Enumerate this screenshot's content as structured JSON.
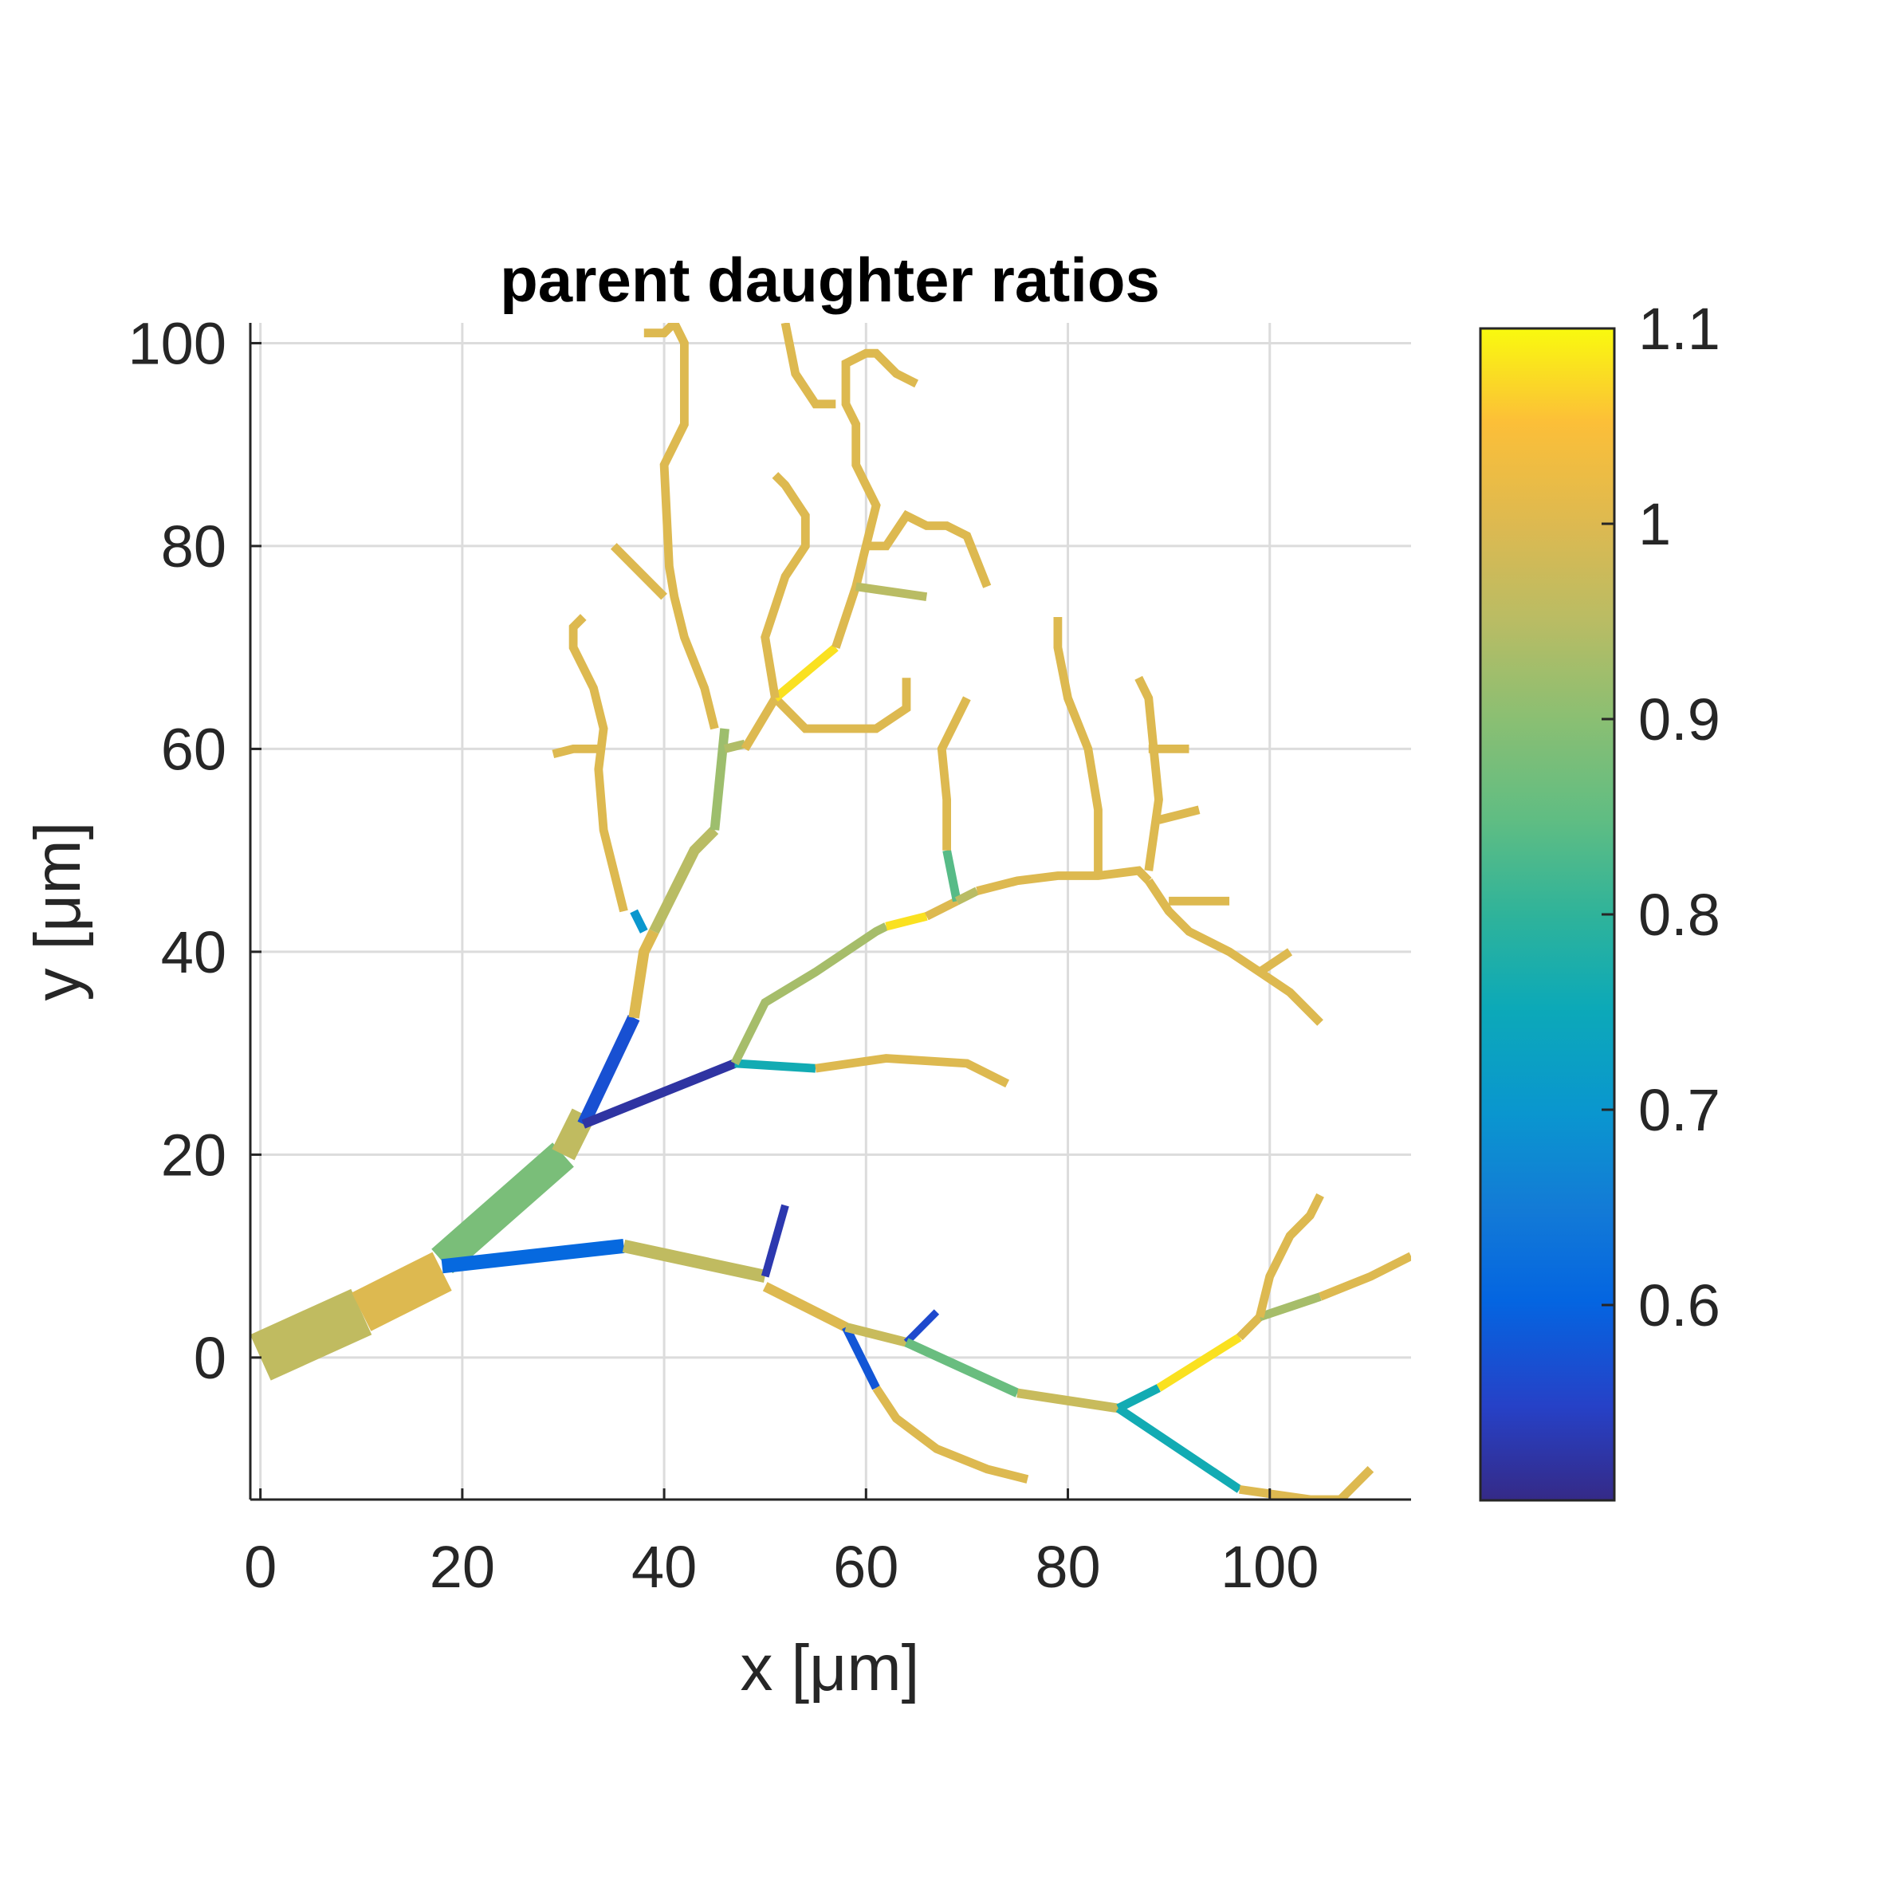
{
  "chart_data": {
    "type": "line",
    "title": "parent daughter ratios",
    "xlabel": "x [μm]",
    "ylabel": "y [μm]",
    "xlim": [
      -1,
      114
    ],
    "ylim": [
      -14,
      102
    ],
    "xticks": [
      0,
      20,
      40,
      60,
      80,
      100
    ],
    "yticks": [
      0,
      20,
      40,
      60,
      80,
      100
    ],
    "grid": true,
    "colormap": "parula",
    "colorbar": {
      "range": [
        0.5,
        1.1
      ],
      "ticks": [
        0.6,
        0.7,
        0.8,
        0.9,
        1,
        1.1
      ],
      "tick_labels": [
        "0.6",
        "0.7",
        "0.8",
        "0.9",
        "1",
        "1.1"
      ],
      "location": "right"
    },
    "segments": [
      {
        "points": [
          [
            0,
            0
          ],
          [
            10,
            4.5
          ]
        ],
        "value": 0.96,
        "width": 7
      },
      {
        "points": [
          [
            10,
            4.5
          ],
          [
            18,
            8.5
          ]
        ],
        "value": 1.0,
        "width": 6
      },
      {
        "points": [
          [
            18,
            9.5
          ],
          [
            30,
            20
          ]
        ],
        "value": 0.88,
        "width": 4.5
      },
      {
        "points": [
          [
            30,
            20
          ],
          [
            32,
            24
          ]
        ],
        "value": 0.96,
        "width": 3.5
      },
      {
        "points": [
          [
            32,
            23
          ],
          [
            37,
            33.5
          ]
        ],
        "value": 0.57,
        "width": 1.8
      },
      {
        "points": [
          [
            37,
            33.5
          ],
          [
            38,
            40
          ],
          [
            39,
            42
          ]
        ],
        "value": 1.0,
        "width": 1.5
      },
      {
        "points": [
          [
            39,
            42
          ],
          [
            43,
            50
          ],
          [
            45,
            52
          ]
        ],
        "value": 0.95,
        "width": 1.5
      },
      {
        "points": [
          [
            45,
            52
          ],
          [
            46,
            62
          ]
        ],
        "value": 0.92,
        "width": 1.3
      },
      {
        "points": [
          [
            46,
            60
          ],
          [
            48,
            60.5
          ]
        ],
        "value": 0.94,
        "width": 1.2
      },
      {
        "points": [
          [
            45,
            62
          ],
          [
            44,
            66
          ],
          [
            42,
            71
          ],
          [
            41,
            75
          ],
          [
            40.5,
            78
          ],
          [
            40,
            88
          ],
          [
            42,
            92
          ],
          [
            42,
            100
          ],
          [
            41,
            102
          ],
          [
            40,
            101
          ],
          [
            38,
            101
          ]
        ],
        "value": 1.0,
        "width": 1.2
      },
      {
        "points": [
          [
            40,
            75
          ],
          [
            35,
            80
          ]
        ],
        "value": 1.0,
        "width": 1.2
      },
      {
        "points": [
          [
            38,
            42
          ],
          [
            37,
            44
          ]
        ],
        "value": 0.7,
        "width": 1.2
      },
      {
        "points": [
          [
            36,
            44
          ],
          [
            34,
            52
          ],
          [
            33.5,
            58
          ],
          [
            34,
            62
          ],
          [
            33,
            66
          ],
          [
            31,
            70
          ],
          [
            31,
            72
          ],
          [
            32,
            73
          ]
        ],
        "value": 1.0,
        "width": 1.2
      },
      {
        "points": [
          [
            34,
            60
          ],
          [
            31,
            60
          ],
          [
            29,
            59.5
          ]
        ],
        "value": 1.0,
        "width": 1.2
      },
      {
        "points": [
          [
            48,
            60
          ],
          [
            51,
            65
          ]
        ],
        "value": 1.0,
        "width": 1.2
      },
      {
        "points": [
          [
            51,
            65
          ],
          [
            54,
            62
          ],
          [
            57,
            62
          ],
          [
            61,
            62
          ],
          [
            64,
            64
          ],
          [
            64,
            66
          ],
          [
            64,
            67
          ]
        ],
        "value": 1.0,
        "width": 1.2
      },
      {
        "points": [
          [
            51,
            65
          ],
          [
            57,
            70
          ]
        ],
        "value": 1.08,
        "width": 1.2
      },
      {
        "points": [
          [
            57,
            70
          ],
          [
            58,
            73
          ],
          [
            59,
            76
          ],
          [
            60,
            80
          ],
          [
            61,
            84
          ],
          [
            60,
            86
          ],
          [
            59,
            88
          ],
          [
            59,
            92
          ],
          [
            58,
            94
          ],
          [
            58,
            98
          ],
          [
            60,
            99
          ],
          [
            61,
            99
          ],
          [
            63,
            97
          ],
          [
            65,
            96
          ]
        ],
        "value": 1.0,
        "width": 1.2
      },
      {
        "points": [
          [
            59,
            76
          ],
          [
            66,
            75
          ]
        ],
        "value": 0.95,
        "width": 1.2
      },
      {
        "points": [
          [
            60,
            80
          ],
          [
            62,
            80
          ],
          [
            64,
            83
          ],
          [
            66,
            82
          ],
          [
            68,
            82
          ],
          [
            70,
            81
          ],
          [
            72,
            76
          ]
        ],
        "value": 1.0,
        "width": 1.2
      },
      {
        "points": [
          [
            57,
            94
          ],
          [
            55,
            94
          ],
          [
            53,
            97
          ],
          [
            52,
            102
          ]
        ],
        "value": 1.0,
        "width": 1.2
      },
      {
        "points": [
          [
            51,
            65
          ],
          [
            50,
            71
          ],
          [
            52,
            77
          ],
          [
            54,
            80
          ],
          [
            54,
            83
          ],
          [
            52,
            86
          ],
          [
            51,
            87
          ]
        ],
        "value": 1.0,
        "width": 1.2
      },
      {
        "points": [
          [
            32,
            23
          ],
          [
            47,
            29
          ]
        ],
        "value": 0.52,
        "width": 1.3
      },
      {
        "points": [
          [
            47,
            29
          ],
          [
            55,
            28.5
          ]
        ],
        "value": 0.76,
        "width": 1.2
      },
      {
        "points": [
          [
            55,
            28.5
          ],
          [
            62,
            29.5
          ],
          [
            70,
            29
          ],
          [
            74,
            27
          ]
        ],
        "value": 1.0,
        "width": 1.2
      },
      {
        "points": [
          [
            47,
            29
          ],
          [
            50,
            35
          ],
          [
            55,
            38
          ],
          [
            61,
            42
          ],
          [
            62,
            42.5
          ]
        ],
        "value": 0.93,
        "width": 1.2
      },
      {
        "points": [
          [
            62,
            42.5
          ],
          [
            66,
            43.5
          ]
        ],
        "value": 1.08,
        "width": 1.2
      },
      {
        "points": [
          [
            66,
            43.5
          ],
          [
            69,
            45
          ]
        ],
        "value": 1.0,
        "width": 1.2
      },
      {
        "points": [
          [
            69,
            45
          ],
          [
            68,
            50
          ]
        ],
        "value": 0.84,
        "width": 1.2
      },
      {
        "points": [
          [
            68,
            50
          ],
          [
            68,
            55
          ],
          [
            67.5,
            60
          ],
          [
            69,
            63
          ],
          [
            70,
            65
          ]
        ],
        "value": 1.0,
        "width": 1.2
      },
      {
        "points": [
          [
            69,
            45
          ],
          [
            71,
            46
          ]
        ],
        "value": 0.95,
        "width": 1.2
      },
      {
        "points": [
          [
            71,
            46
          ],
          [
            75,
            47
          ],
          [
            79,
            47.5
          ],
          [
            83,
            47.5
          ],
          [
            87,
            48
          ],
          [
            88,
            47
          ]
        ],
        "value": 1.0,
        "width": 1.2
      },
      {
        "points": [
          [
            83,
            47.5
          ],
          [
            83,
            54
          ],
          [
            82,
            60
          ],
          [
            80,
            65
          ],
          [
            79,
            70
          ],
          [
            79,
            73
          ]
        ],
        "value": 1.0,
        "width": 1.2
      },
      {
        "points": [
          [
            88,
            48
          ],
          [
            89,
            55
          ],
          [
            88.5,
            60
          ],
          [
            88,
            65
          ],
          [
            87,
            67
          ]
        ],
        "value": 1.0,
        "width": 1.2
      },
      {
        "points": [
          [
            88,
            60
          ],
          [
            92,
            60
          ]
        ],
        "value": 1.0,
        "width": 1.2
      },
      {
        "points": [
          [
            89,
            53
          ],
          [
            93,
            54
          ]
        ],
        "value": 1.0,
        "width": 1.2
      },
      {
        "points": [
          [
            88,
            47
          ],
          [
            90,
            44
          ],
          [
            92,
            42
          ],
          [
            96,
            40
          ],
          [
            99,
            38
          ],
          [
            102,
            36
          ],
          [
            105,
            33
          ]
        ],
        "value": 1.0,
        "width": 1.2
      },
      {
        "points": [
          [
            90,
            45
          ],
          [
            96,
            45
          ]
        ],
        "value": 1.0,
        "width": 1.2
      },
      {
        "points": [
          [
            99,
            38
          ],
          [
            102,
            40
          ]
        ],
        "value": 1.0,
        "width": 1.2
      },
      {
        "points": [
          [
            18,
            9
          ],
          [
            36,
            11
          ]
        ],
        "value": 0.61,
        "width": 2.0
      },
      {
        "points": [
          [
            36,
            11
          ],
          [
            50,
            8
          ]
        ],
        "value": 0.96,
        "width": 1.8
      },
      {
        "points": [
          [
            50,
            8
          ],
          [
            52,
            15
          ]
        ],
        "value": 0.53,
        "width": 1.1
      },
      {
        "points": [
          [
            50,
            7
          ],
          [
            58,
            3
          ]
        ],
        "value": 1.0,
        "width": 1.4
      },
      {
        "points": [
          [
            58,
            3
          ],
          [
            61,
            -3
          ]
        ],
        "value": 0.58,
        "width": 1.2
      },
      {
        "points": [
          [
            61,
            -3
          ],
          [
            63,
            -6
          ],
          [
            67,
            -9
          ],
          [
            72,
            -11
          ],
          [
            76,
            -12
          ]
        ],
        "value": 1.0,
        "width": 1.2
      },
      {
        "points": [
          [
            58,
            3
          ],
          [
            64,
            1.5
          ]
        ],
        "value": 0.97,
        "width": 1.3
      },
      {
        "points": [
          [
            64,
            1.5
          ],
          [
            67,
            4.5
          ]
        ],
        "value": 0.56,
        "width": 1.0
      },
      {
        "points": [
          [
            64,
            1.5
          ],
          [
            75,
            -3.5
          ]
        ],
        "value": 0.86,
        "width": 1.3
      },
      {
        "points": [
          [
            75,
            -3.5
          ],
          [
            85,
            -5
          ]
        ],
        "value": 0.97,
        "width": 1.3
      },
      {
        "points": [
          [
            85,
            -5
          ],
          [
            89,
            -3
          ]
        ],
        "value": 0.76,
        "width": 1.2
      },
      {
        "points": [
          [
            89,
            -3
          ],
          [
            97,
            2
          ]
        ],
        "value": 1.08,
        "width": 1.2
      },
      {
        "points": [
          [
            97,
            2
          ],
          [
            99,
            4
          ]
        ],
        "value": 1.0,
        "width": 1.2
      },
      {
        "points": [
          [
            99,
            4
          ],
          [
            105,
            6
          ]
        ],
        "value": 0.93,
        "width": 1.2
      },
      {
        "points": [
          [
            105,
            6
          ],
          [
            110,
            8
          ],
          [
            114,
            10
          ]
        ],
        "value": 1.0,
        "width": 1.2
      },
      {
        "points": [
          [
            99,
            4
          ],
          [
            100,
            8
          ],
          [
            102,
            12
          ],
          [
            104,
            14
          ],
          [
            105,
            16
          ]
        ],
        "value": 1.0,
        "width": 1.2
      },
      {
        "points": [
          [
            85,
            -5
          ],
          [
            97,
            -13
          ]
        ],
        "value": 0.76,
        "width": 1.2
      },
      {
        "points": [
          [
            97,
            -13
          ],
          [
            104,
            -14
          ],
          [
            107,
            -14
          ],
          [
            110,
            -11
          ]
        ],
        "value": 1.0,
        "width": 1.2
      }
    ]
  }
}
